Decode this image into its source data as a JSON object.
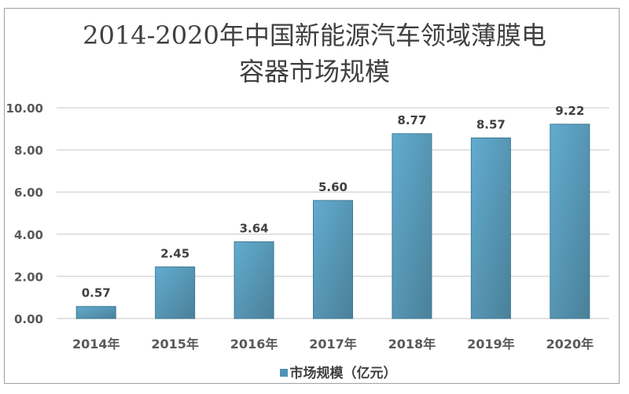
{
  "chart_data": {
    "type": "bar",
    "title_lines": [
      "2014-2020年中国新能源汽车领域薄膜电",
      "容器市场规模"
    ],
    "categories": [
      "2014年",
      "2015年",
      "2016年",
      "2017年",
      "2018年",
      "2019年",
      "2020年"
    ],
    "series": [
      {
        "name": "市场规模（亿元）",
        "values": [
          0.57,
          2.45,
          3.64,
          5.6,
          8.77,
          8.57,
          9.22
        ],
        "color": "#5aa3c4"
      }
    ],
    "data_labels": [
      "0.57",
      "2.45",
      "3.64",
      "5.60",
      "8.77",
      "8.57",
      "9.22"
    ],
    "yticks": [
      "0.00",
      "2.00",
      "4.00",
      "6.00",
      "8.00",
      "10.00"
    ],
    "ylim": [
      0,
      10
    ],
    "grid": true,
    "legend_position": "bottom"
  }
}
